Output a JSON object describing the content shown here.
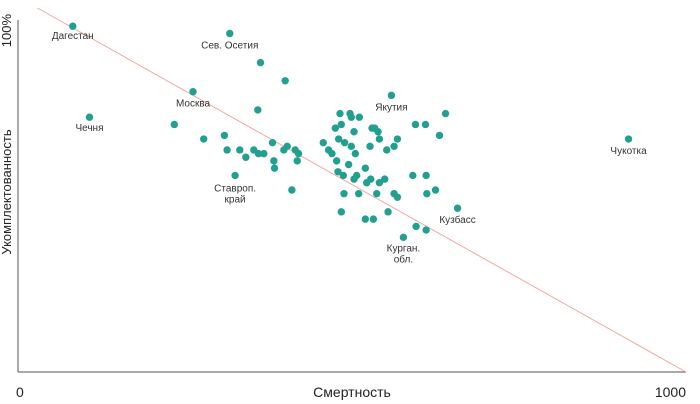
{
  "chart_data": {
    "type": "scatter",
    "xlabel": "Смертность",
    "ylabel": "Укомплектованность",
    "x_ticks": {
      "min": "0",
      "max": "1000"
    },
    "y_ticks": {
      "max": "100%"
    },
    "xlim": [
      0,
      1000
    ],
    "ylim": [
      0,
      100
    ],
    "point_color": "#22a08f",
    "trend_color": "#f3a6a3",
    "trend_line": {
      "x": [
        29,
        1000
      ],
      "y": [
        100,
        0
      ]
    },
    "labeled_points": [
      {
        "label": "Дагестан",
        "x": 82,
        "y": 95
      },
      {
        "label": "Сев. Осетия",
        "x": 317,
        "y": 93
      },
      {
        "label": "Чечня",
        "x": 107,
        "y": 70
      },
      {
        "label": "Москва",
        "x": 262,
        "y": 77
      },
      {
        "label": "Якутия",
        "x": 559,
        "y": 76
      },
      {
        "label": "Ставроп. край",
        "x": 325,
        "y": 54
      },
      {
        "label": "Кузбасс",
        "x": 658,
        "y": 45
      },
      {
        "label": "Курган. обл.",
        "x": 577,
        "y": 37
      },
      {
        "label": "Чукотка",
        "x": 914,
        "y": 64
      }
    ],
    "points": [
      {
        "x": 363,
        "y": 85
      },
      {
        "x": 400,
        "y": 80
      },
      {
        "x": 359,
        "y": 72
      },
      {
        "x": 234,
        "y": 68
      },
      {
        "x": 278,
        "y": 64
      },
      {
        "x": 309,
        "y": 65
      },
      {
        "x": 313,
        "y": 61
      },
      {
        "x": 332,
        "y": 61
      },
      {
        "x": 341,
        "y": 59
      },
      {
        "x": 353,
        "y": 61
      },
      {
        "x": 360,
        "y": 60
      },
      {
        "x": 368,
        "y": 60
      },
      {
        "x": 381,
        "y": 63
      },
      {
        "x": 383,
        "y": 58
      },
      {
        "x": 398,
        "y": 61
      },
      {
        "x": 403,
        "y": 62
      },
      {
        "x": 384,
        "y": 56
      },
      {
        "x": 415,
        "y": 61
      },
      {
        "x": 420,
        "y": 60
      },
      {
        "x": 418,
        "y": 58
      },
      {
        "x": 410,
        "y": 50
      },
      {
        "x": 457,
        "y": 63
      },
      {
        "x": 465,
        "y": 61
      },
      {
        "x": 470,
        "y": 60
      },
      {
        "x": 477,
        "y": 58
      },
      {
        "x": 480,
        "y": 64
      },
      {
        "x": 482,
        "y": 71
      },
      {
        "x": 475,
        "y": 67
      },
      {
        "x": 484,
        "y": 68
      },
      {
        "x": 489,
        "y": 63
      },
      {
        "x": 497,
        "y": 71
      },
      {
        "x": 499,
        "y": 70
      },
      {
        "x": 503,
        "y": 66
      },
      {
        "x": 499,
        "y": 62
      },
      {
        "x": 505,
        "y": 60
      },
      {
        "x": 511,
        "y": 70
      },
      {
        "x": 520,
        "y": 56
      },
      {
        "x": 527,
        "y": 62
      },
      {
        "x": 530,
        "y": 67
      },
      {
        "x": 534,
        "y": 67
      },
      {
        "x": 539,
        "y": 66
      },
      {
        "x": 541,
        "y": 64
      },
      {
        "x": 552,
        "y": 61
      },
      {
        "x": 563,
        "y": 62
      },
      {
        "x": 568,
        "y": 64
      },
      {
        "x": 595,
        "y": 68
      },
      {
        "x": 479,
        "y": 55
      },
      {
        "x": 487,
        "y": 54
      },
      {
        "x": 495,
        "y": 57
      },
      {
        "x": 503,
        "y": 53
      },
      {
        "x": 507,
        "y": 54
      },
      {
        "x": 522,
        "y": 52
      },
      {
        "x": 528,
        "y": 53
      },
      {
        "x": 541,
        "y": 52
      },
      {
        "x": 549,
        "y": 53
      },
      {
        "x": 537,
        "y": 49
      },
      {
        "x": 510,
        "y": 49
      },
      {
        "x": 488,
        "y": 49
      },
      {
        "x": 484,
        "y": 44
      },
      {
        "x": 532,
        "y": 42
      },
      {
        "x": 554,
        "y": 44
      },
      {
        "x": 568,
        "y": 48
      },
      {
        "x": 591,
        "y": 54
      },
      {
        "x": 611,
        "y": 54
      },
      {
        "x": 610,
        "y": 68
      },
      {
        "x": 631,
        "y": 65
      },
      {
        "x": 640,
        "y": 71
      },
      {
        "x": 612,
        "y": 49
      },
      {
        "x": 625,
        "y": 50
      },
      {
        "x": 596,
        "y": 40
      },
      {
        "x": 611,
        "y": 39
      },
      {
        "x": 520,
        "y": 42
      },
      {
        "x": 563,
        "y": 49
      }
    ]
  }
}
